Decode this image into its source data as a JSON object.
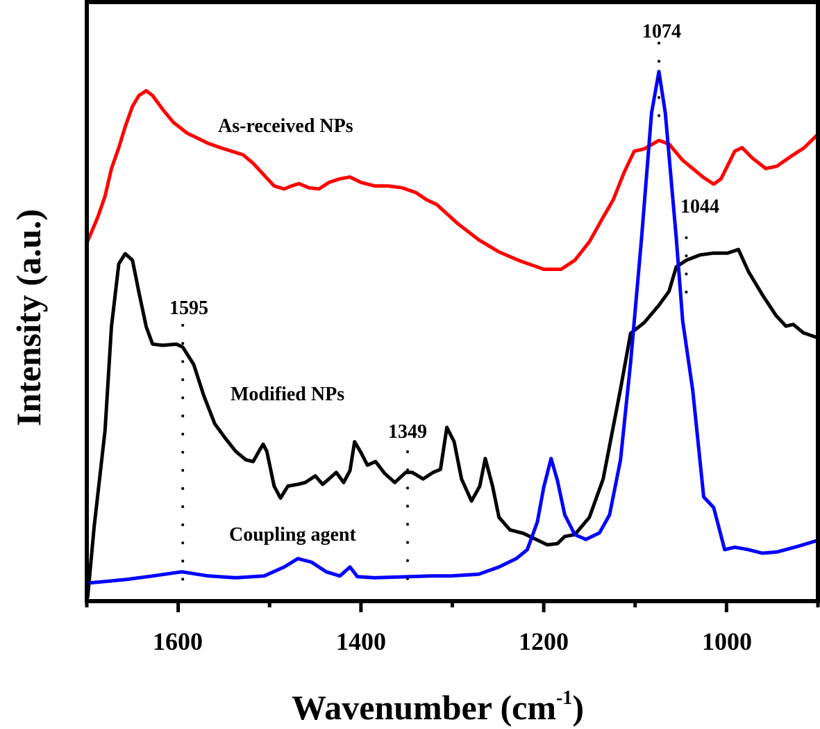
{
  "chart_data": {
    "type": "line",
    "title": "",
    "xlabel": "Wavenumber (cm",
    "xlabel_sup": "-1",
    "xlabel_close": ")",
    "ylabel": "Intensity (a.u.)",
    "xlim": [
      1700,
      900
    ],
    "ylim": [
      0,
      100
    ],
    "x_reversed": true,
    "grid": false,
    "xticks": [
      1600,
      1400,
      1200,
      1000
    ],
    "xticks_minor": [
      1700,
      1500,
      1300,
      1100,
      900
    ],
    "xtick_labels": [
      "1600",
      "1400",
      "1200",
      "1000"
    ],
    "colors": {
      "as_received": "#ff0000",
      "modified": "#000000",
      "coupling": "#0000ff",
      "axis": "#000000"
    },
    "series": [
      {
        "name": "As-received NPs",
        "color": "#ff0000",
        "points": [
          [
            1699,
            60.1
          ],
          [
            1688,
            64.1
          ],
          [
            1680,
            67.6
          ],
          [
            1673,
            72.2
          ],
          [
            1665,
            75.7
          ],
          [
            1658,
            79.2
          ],
          [
            1650,
            82.6
          ],
          [
            1643,
            84.4
          ],
          [
            1635,
            85.2
          ],
          [
            1628,
            84.4
          ],
          [
            1617,
            82.1
          ],
          [
            1605,
            79.9
          ],
          [
            1590,
            78.1
          ],
          [
            1567,
            76.4
          ],
          [
            1552,
            75.6
          ],
          [
            1529,
            74.5
          ],
          [
            1518,
            73.1
          ],
          [
            1506,
            71.1
          ],
          [
            1495,
            69.3
          ],
          [
            1484,
            68.8
          ],
          [
            1476,
            69.3
          ],
          [
            1468,
            69.7
          ],
          [
            1457,
            69.0
          ],
          [
            1446,
            68.8
          ],
          [
            1435,
            69.9
          ],
          [
            1423,
            70.5
          ],
          [
            1412,
            70.8
          ],
          [
            1400,
            69.9
          ],
          [
            1385,
            69.3
          ],
          [
            1370,
            69.3
          ],
          [
            1355,
            69.0
          ],
          [
            1340,
            68.2
          ],
          [
            1328,
            67.0
          ],
          [
            1317,
            66.2
          ],
          [
            1294,
            63.0
          ],
          [
            1271,
            60.3
          ],
          [
            1249,
            58.3
          ],
          [
            1226,
            56.8
          ],
          [
            1211,
            56.0
          ],
          [
            1200,
            55.4
          ],
          [
            1181,
            55.4
          ],
          [
            1166,
            56.9
          ],
          [
            1150,
            60.0
          ],
          [
            1135,
            64.1
          ],
          [
            1124,
            67.0
          ],
          [
            1112,
            71.6
          ],
          [
            1101,
            75.1
          ],
          [
            1090,
            75.5
          ],
          [
            1074,
            76.9
          ],
          [
            1063,
            76.3
          ],
          [
            1048,
            73.6
          ],
          [
            1037,
            72.2
          ],
          [
            1025,
            70.7
          ],
          [
            1014,
            69.6
          ],
          [
            1006,
            70.5
          ],
          [
            991,
            75.1
          ],
          [
            983,
            75.7
          ],
          [
            972,
            74.0
          ],
          [
            957,
            72.2
          ],
          [
            945,
            72.6
          ],
          [
            930,
            74.2
          ],
          [
            915,
            75.7
          ],
          [
            901,
            77.8
          ]
        ]
      },
      {
        "name": "Modified NPs",
        "color": "#000000",
        "points": [
          [
            1699,
            0.7
          ],
          [
            1692,
            12.3
          ],
          [
            1680,
            28.5
          ],
          [
            1673,
            45.8
          ],
          [
            1665,
            56.3
          ],
          [
            1658,
            58.0
          ],
          [
            1650,
            56.9
          ],
          [
            1643,
            51.6
          ],
          [
            1635,
            45.8
          ],
          [
            1628,
            42.9
          ],
          [
            1617,
            42.7
          ],
          [
            1602,
            42.9
          ],
          [
            1595,
            42.4
          ],
          [
            1583,
            39.5
          ],
          [
            1572,
            34.3
          ],
          [
            1560,
            29.6
          ],
          [
            1549,
            27.3
          ],
          [
            1537,
            25.0
          ],
          [
            1526,
            23.6
          ],
          [
            1518,
            23.3
          ],
          [
            1511,
            25.2
          ],
          [
            1507,
            26.2
          ],
          [
            1503,
            25.0
          ],
          [
            1495,
            19.2
          ],
          [
            1488,
            17.2
          ],
          [
            1480,
            19.2
          ],
          [
            1469,
            19.5
          ],
          [
            1461,
            19.8
          ],
          [
            1450,
            20.9
          ],
          [
            1442,
            19.5
          ],
          [
            1435,
            20.4
          ],
          [
            1427,
            21.5
          ],
          [
            1419,
            19.8
          ],
          [
            1412,
            21.8
          ],
          [
            1407,
            26.6
          ],
          [
            1400,
            24.8
          ],
          [
            1393,
            22.7
          ],
          [
            1384,
            23.3
          ],
          [
            1374,
            21.3
          ],
          [
            1363,
            19.8
          ],
          [
            1351,
            21.5
          ],
          [
            1344,
            21.5
          ],
          [
            1332,
            20.4
          ],
          [
            1321,
            21.5
          ],
          [
            1313,
            22.0
          ],
          [
            1306,
            29.0
          ],
          [
            1298,
            26.6
          ],
          [
            1290,
            20.4
          ],
          [
            1279,
            16.7
          ],
          [
            1270,
            19.2
          ],
          [
            1264,
            23.8
          ],
          [
            1256,
            19.2
          ],
          [
            1249,
            14.0
          ],
          [
            1237,
            11.9
          ],
          [
            1222,
            11.3
          ],
          [
            1207,
            10.2
          ],
          [
            1196,
            9.4
          ],
          [
            1185,
            9.6
          ],
          [
            1177,
            10.8
          ],
          [
            1166,
            11.1
          ],
          [
            1150,
            14.0
          ],
          [
            1135,
            20.4
          ],
          [
            1116,
            35.4
          ],
          [
            1105,
            44.7
          ],
          [
            1090,
            46.5
          ],
          [
            1074,
            49.4
          ],
          [
            1063,
            51.7
          ],
          [
            1055,
            55.8
          ],
          [
            1044,
            56.9
          ],
          [
            1029,
            57.8
          ],
          [
            1014,
            58.1
          ],
          [
            999,
            58.1
          ],
          [
            987,
            58.7
          ],
          [
            976,
            55.0
          ],
          [
            961,
            51.2
          ],
          [
            946,
            47.7
          ],
          [
            935,
            45.9
          ],
          [
            927,
            46.2
          ],
          [
            916,
            44.8
          ],
          [
            901,
            44.0
          ]
        ]
      },
      {
        "name": "Coupling agent",
        "color": "#0000ff",
        "points": [
          [
            1699,
            3.0
          ],
          [
            1658,
            3.6
          ],
          [
            1628,
            4.2
          ],
          [
            1596,
            4.9
          ],
          [
            1567,
            4.2
          ],
          [
            1537,
            3.9
          ],
          [
            1506,
            4.2
          ],
          [
            1484,
            5.7
          ],
          [
            1469,
            7.1
          ],
          [
            1454,
            6.5
          ],
          [
            1438,
            4.9
          ],
          [
            1423,
            4.2
          ],
          [
            1412,
            5.7
          ],
          [
            1404,
            4.1
          ],
          [
            1385,
            3.9
          ],
          [
            1347,
            4.1
          ],
          [
            1324,
            4.2
          ],
          [
            1302,
            4.2
          ],
          [
            1271,
            4.5
          ],
          [
            1249,
            5.7
          ],
          [
            1230,
            7.1
          ],
          [
            1218,
            8.6
          ],
          [
            1207,
            13.2
          ],
          [
            1200,
            19.0
          ],
          [
            1192,
            23.8
          ],
          [
            1185,
            20.1
          ],
          [
            1177,
            14.4
          ],
          [
            1166,
            11.1
          ],
          [
            1154,
            10.3
          ],
          [
            1139,
            11.4
          ],
          [
            1128,
            14.4
          ],
          [
            1116,
            23.6
          ],
          [
            1105,
            39.8
          ],
          [
            1093,
            60.6
          ],
          [
            1082,
            81.5
          ],
          [
            1074,
            88.4
          ],
          [
            1067,
            81.5
          ],
          [
            1055,
            60.6
          ],
          [
            1048,
            46.8
          ],
          [
            1037,
            35.2
          ],
          [
            1025,
            17.4
          ],
          [
            1014,
            15.6
          ],
          [
            1002,
            8.6
          ],
          [
            991,
            9.0
          ],
          [
            976,
            8.6
          ],
          [
            961,
            8.0
          ],
          [
            945,
            8.2
          ],
          [
            923,
            9.1
          ],
          [
            901,
            10.1
          ]
        ]
      }
    ],
    "annotations": [
      {
        "label": "As-received NPs",
        "kind": "series-label"
      },
      {
        "label": "Modified NPs",
        "kind": "series-label"
      },
      {
        "label": "Coupling agent",
        "kind": "series-label"
      },
      {
        "label": "1595",
        "x": 1595,
        "kind": "peak-marker"
      },
      {
        "label": "1349",
        "x": 1349,
        "kind": "peak-marker"
      },
      {
        "label": "1074",
        "x": 1074,
        "kind": "peak-marker"
      },
      {
        "label": "1044",
        "x": 1044,
        "kind": "peak-marker"
      }
    ]
  }
}
